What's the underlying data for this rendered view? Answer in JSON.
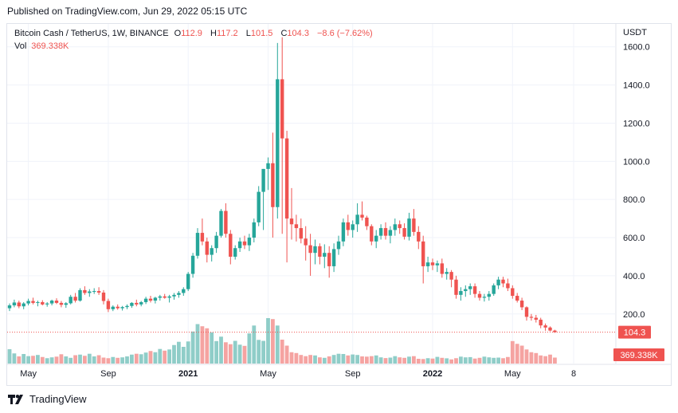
{
  "published_text": "Published on TradingView.com, Jun 29, 2022 05:15 UTC",
  "header": {
    "symbol": "Bitcoin Cash / TetherUS, 1W, BINANCE",
    "o_label": "O",
    "o_value": "112.9",
    "h_label": "H",
    "h_value": "117.2",
    "l_label": "L",
    "l_value": "101.5",
    "c_label": "C",
    "c_value": "104.3",
    "change": "−8.6 (−7.62%)"
  },
  "volume": {
    "label": "Vol",
    "value": "369.338K"
  },
  "axis_currency": "USDT",
  "brand": "TradingView",
  "colors": {
    "up": "#26a69a",
    "down": "#ef5350",
    "up_vol": "#8fcdc8",
    "down_vol": "#f5a3a1",
    "grid": "#f0f3fa",
    "text": "#131722"
  },
  "chart_data": {
    "type": "candlestick",
    "symbol": "Bitcoin Cash / TetherUS",
    "interval": "1W",
    "exchange": "BINANCE",
    "price_axis": {
      "ticks": [
        200,
        400,
        600,
        800,
        1000,
        1200,
        1400,
        1600
      ],
      "tick_labels": [
        "200.0",
        "400.0",
        "600.0",
        "800.0",
        "1000.0",
        "1200.0",
        "1400.0",
        "1600.0"
      ],
      "side": "right",
      "ylim": [
        -60,
        1720
      ]
    },
    "time_axis": {
      "ticks": [
        {
          "label": "May",
          "bar": 4
        },
        {
          "label": "Sep",
          "bar": 21
        },
        {
          "label": "2021",
          "bar": 38,
          "bold": true
        },
        {
          "label": "May",
          "bar": 55
        },
        {
          "label": "Sep",
          "bar": 73
        },
        {
          "label": "2022",
          "bar": 90,
          "bold": true
        },
        {
          "label": "May",
          "bar": 107
        },
        {
          "label": "8",
          "bar": 120
        }
      ]
    },
    "last_price": "104.3",
    "last_volume": "369.338K",
    "grid": true,
    "candles": [
      [
        230,
        255,
        215,
        245
      ],
      [
        245,
        275,
        235,
        260
      ],
      [
        260,
        270,
        230,
        240
      ],
      [
        240,
        262,
        225,
        255
      ],
      [
        255,
        280,
        245,
        268
      ],
      [
        268,
        285,
        250,
        258
      ],
      [
        258,
        270,
        240,
        262
      ],
      [
        262,
        272,
        245,
        250
      ],
      [
        250,
        262,
        238,
        255
      ],
      [
        255,
        275,
        245,
        270
      ],
      [
        270,
        282,
        252,
        258
      ],
      [
        258,
        268,
        235,
        248
      ],
      [
        248,
        262,
        232,
        256
      ],
      [
        256,
        300,
        250,
        290
      ],
      [
        290,
        310,
        260,
        270
      ],
      [
        270,
        335,
        265,
        325
      ],
      [
        325,
        345,
        300,
        310
      ],
      [
        310,
        330,
        290,
        318
      ],
      [
        318,
        335,
        305,
        320
      ],
      [
        320,
        340,
        300,
        312
      ],
      [
        312,
        325,
        250,
        268
      ],
      [
        268,
        280,
        210,
        225
      ],
      [
        225,
        245,
        215,
        238
      ],
      [
        238,
        250,
        222,
        230
      ],
      [
        230,
        242,
        218,
        236
      ],
      [
        236,
        250,
        225,
        242
      ],
      [
        242,
        262,
        232,
        258
      ],
      [
        258,
        275,
        240,
        250
      ],
      [
        250,
        268,
        240,
        262
      ],
      [
        262,
        290,
        252,
        280
      ],
      [
        280,
        295,
        260,
        270
      ],
      [
        270,
        290,
        255,
        285
      ],
      [
        285,
        300,
        270,
        292
      ],
      [
        292,
        305,
        280,
        285
      ],
      [
        285,
        300,
        260,
        292
      ],
      [
        292,
        310,
        275,
        300
      ],
      [
        300,
        320,
        285,
        310
      ],
      [
        310,
        340,
        295,
        330
      ],
      [
        330,
        420,
        320,
        410
      ],
      [
        410,
        520,
        390,
        505
      ],
      [
        505,
        650,
        490,
        625
      ],
      [
        625,
        700,
        560,
        580
      ],
      [
        580,
        600,
        470,
        510
      ],
      [
        510,
        560,
        475,
        545
      ],
      [
        545,
        630,
        520,
        610
      ],
      [
        610,
        750,
        600,
        740
      ],
      [
        740,
        780,
        600,
        620
      ],
      [
        620,
        640,
        460,
        500
      ],
      [
        500,
        560,
        485,
        545
      ],
      [
        545,
        600,
        525,
        580
      ],
      [
        580,
        610,
        540,
        560
      ],
      [
        560,
        620,
        530,
        600
      ],
      [
        600,
        700,
        575,
        680
      ],
      [
        680,
        870,
        660,
        840
      ],
      [
        840,
        960,
        640,
        960
      ],
      [
        960,
        1020,
        850,
        990
      ],
      [
        990,
        1150,
        600,
        760
      ],
      [
        760,
        1620,
        700,
        1430
      ],
      [
        1430,
        1650,
        620,
        1120
      ],
      [
        1120,
        1160,
        470,
        700
      ],
      [
        700,
        860,
        590,
        670
      ],
      [
        670,
        720,
        580,
        650
      ],
      [
        650,
        700,
        570,
        595
      ],
      [
        595,
        660,
        480,
        560
      ],
      [
        560,
        620,
        400,
        520
      ],
      [
        520,
        590,
        460,
        555
      ],
      [
        555,
        570,
        460,
        500
      ],
      [
        500,
        565,
        440,
        520
      ],
      [
        520,
        555,
        390,
        450
      ],
      [
        450,
        570,
        420,
        540
      ],
      [
        540,
        610,
        510,
        580
      ],
      [
        580,
        700,
        555,
        680
      ],
      [
        680,
        720,
        610,
        640
      ],
      [
        640,
        690,
        600,
        670
      ],
      [
        670,
        780,
        630,
        720
      ],
      [
        720,
        790,
        690,
        705
      ],
      [
        705,
        715,
        640,
        660
      ],
      [
        660,
        670,
        560,
        580
      ],
      [
        580,
        640,
        545,
        610
      ],
      [
        610,
        670,
        590,
        650
      ],
      [
        650,
        680,
        590,
        610
      ],
      [
        610,
        660,
        570,
        640
      ],
      [
        640,
        700,
        610,
        670
      ],
      [
        670,
        690,
        620,
        650
      ],
      [
        650,
        675,
        590,
        605
      ],
      [
        605,
        730,
        585,
        700
      ],
      [
        700,
        750,
        610,
        630
      ],
      [
        630,
        660,
        540,
        580
      ],
      [
        580,
        610,
        360,
        450
      ],
      [
        450,
        500,
        420,
        470
      ],
      [
        470,
        490,
        430,
        455
      ],
      [
        455,
        480,
        420,
        465
      ],
      [
        465,
        490,
        390,
        410
      ],
      [
        410,
        440,
        380,
        420
      ],
      [
        420,
        430,
        340,
        380
      ],
      [
        380,
        400,
        280,
        300
      ],
      [
        300,
        340,
        270,
        320
      ],
      [
        320,
        350,
        290,
        330
      ],
      [
        330,
        360,
        300,
        345
      ],
      [
        345,
        360,
        285,
        305
      ],
      [
        305,
        320,
        270,
        285
      ],
      [
        285,
        305,
        265,
        290
      ],
      [
        290,
        320,
        270,
        305
      ],
      [
        305,
        360,
        295,
        350
      ],
      [
        350,
        395,
        330,
        380
      ],
      [
        380,
        395,
        340,
        360
      ],
      [
        360,
        385,
        320,
        335
      ],
      [
        335,
        350,
        280,
        295
      ],
      [
        295,
        310,
        260,
        270
      ],
      [
        270,
        285,
        220,
        235
      ],
      [
        235,
        240,
        165,
        185
      ],
      [
        185,
        200,
        165,
        180
      ],
      [
        180,
        195,
        155,
        170
      ],
      [
        170,
        180,
        125,
        140
      ],
      [
        140,
        150,
        112,
        129
      ],
      [
        129,
        135,
        109,
        113
      ],
      [
        112.9,
        117.2,
        101.5,
        104.3
      ]
    ],
    "volumes": [
      120,
      85,
      60,
      80,
      62,
      65,
      72,
      55,
      45,
      52,
      58,
      78,
      60,
      48,
      70,
      75,
      65,
      82,
      60,
      70,
      50,
      45,
      55,
      48,
      52,
      60,
      75,
      82,
      78,
      92,
      105,
      95,
      122,
      108,
      118,
      155,
      182,
      140,
      185,
      268,
      330,
      312,
      295,
      260,
      188,
      225,
      178,
      162,
      190,
      158,
      148,
      252,
      318,
      198,
      190,
      380,
      372,
      318,
      200,
      150,
      95,
      88,
      72,
      62,
      72,
      68,
      52,
      48,
      60,
      72,
      82,
      80,
      68,
      76,
      72,
      60,
      58,
      62,
      68,
      52,
      46,
      50,
      62,
      52,
      48,
      58,
      62,
      40,
      38,
      45,
      42,
      56,
      48,
      44,
      35,
      45,
      58,
      52,
      54,
      42,
      48,
      58,
      52,
      48,
      50,
      45,
      55,
      188,
      165,
      150,
      118,
      95,
      88,
      68,
      62,
      75,
      50
    ]
  }
}
